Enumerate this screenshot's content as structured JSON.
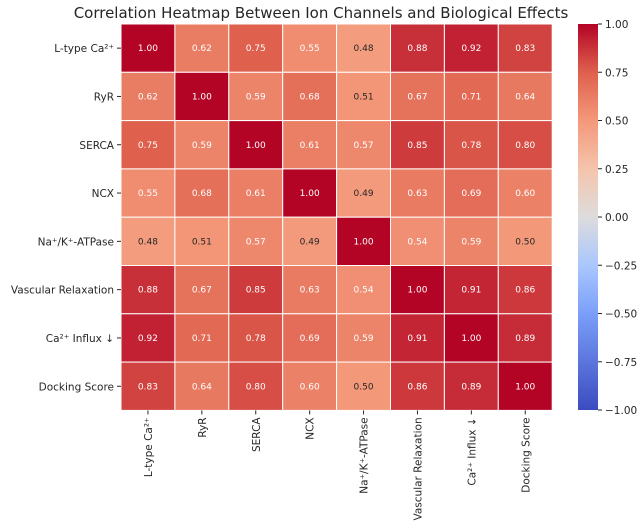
{
  "chart_data": {
    "type": "heatmap",
    "title": "Correlation Heatmap Between Ion Channels and Biological Effects",
    "row_labels": [
      "L-type Ca²⁺",
      "RyR",
      "SERCA",
      "NCX",
      "Na⁺/K⁺-ATPase",
      "Vascular Relaxation",
      "Ca²⁺ Influx ↓",
      "Docking Score"
    ],
    "col_labels": [
      "L-type Ca²⁺",
      "RyR",
      "SERCA",
      "NCX",
      "Na⁺/K⁺-ATPase",
      "Vascular Relaxation",
      "Ca²⁺ Influx ↓",
      "Docking Score"
    ],
    "values": [
      [
        1.0,
        0.62,
        0.75,
        0.55,
        0.48,
        0.88,
        0.92,
        0.83
      ],
      [
        0.62,
        1.0,
        0.59,
        0.68,
        0.51,
        0.67,
        0.71,
        0.64
      ],
      [
        0.75,
        0.59,
        1.0,
        0.61,
        0.57,
        0.85,
        0.78,
        0.8
      ],
      [
        0.55,
        0.68,
        0.61,
        1.0,
        0.49,
        0.63,
        0.69,
        0.6
      ],
      [
        0.48,
        0.51,
        0.57,
        0.49,
        1.0,
        0.54,
        0.59,
        0.5
      ],
      [
        0.88,
        0.67,
        0.85,
        0.63,
        0.54,
        1.0,
        0.91,
        0.86
      ],
      [
        0.92,
        0.71,
        0.78,
        0.69,
        0.59,
        0.91,
        1.0,
        0.89
      ],
      [
        0.83,
        0.64,
        0.8,
        0.6,
        0.5,
        0.86,
        0.89,
        1.0
      ]
    ],
    "value_labels": [
      [
        "1.00",
        "0.62",
        "0.75",
        "0.55",
        "0.48",
        "0.88",
        "0.92",
        "0.83"
      ],
      [
        "0.62",
        "1.00",
        "0.59",
        "0.68",
        "0.51",
        "0.67",
        "0.71",
        "0.64"
      ],
      [
        "0.75",
        "0.59",
        "1.00",
        "0.61",
        "0.57",
        "0.85",
        "0.78",
        "0.80"
      ],
      [
        "0.55",
        "0.68",
        "0.61",
        "1.00",
        "0.49",
        "0.63",
        "0.69",
        "0.60"
      ],
      [
        "0.48",
        "0.51",
        "0.57",
        "0.49",
        "1.00",
        "0.54",
        "0.59",
        "0.50"
      ],
      [
        "0.88",
        "0.67",
        "0.85",
        "0.63",
        "0.54",
        "1.00",
        "0.91",
        "0.86"
      ],
      [
        "0.92",
        "0.71",
        "0.78",
        "0.69",
        "0.59",
        "0.91",
        "1.00",
        "0.89"
      ],
      [
        "0.83",
        "0.64",
        "0.80",
        "0.60",
        "0.50",
        "0.86",
        "0.89",
        "1.00"
      ]
    ],
    "colormap": "coolwarm",
    "vmin": -1,
    "vmax": 1,
    "colorbar_ticks": [
      "1.00",
      "0.75",
      "0.50",
      "0.25",
      "0.00",
      "−0.25",
      "−0.50",
      "−0.75",
      "−1.00"
    ],
    "colorbar_tick_values": [
      1,
      0.75,
      0.5,
      0.25,
      0,
      -0.25,
      -0.5,
      -0.75,
      -1
    ],
    "colors": {
      "low": "#3b4cc0",
      "mid": "#dddddd",
      "high": "#b40426"
    }
  }
}
